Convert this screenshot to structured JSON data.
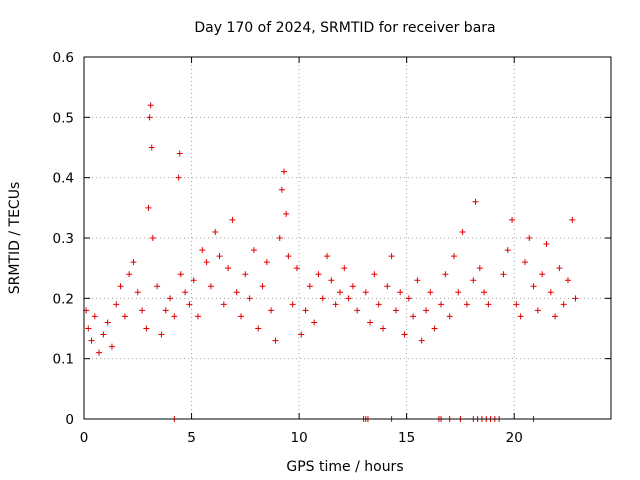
{
  "chart_data": {
    "type": "scatter",
    "title": "Day 170 of 2024, SRMTID for receiver bara",
    "xlabel": "GPS time / hours",
    "ylabel": "SRMTID / TECUs",
    "xlim": [
      0,
      24.5
    ],
    "ylim": [
      0,
      0.6
    ],
    "xticks": [
      0,
      5,
      10,
      15,
      20
    ],
    "xtick_labels": [
      "0",
      "5",
      "10",
      "15",
      "20"
    ],
    "yticks": [
      0,
      0.1,
      0.2,
      0.3,
      0.4,
      0.5,
      0.6
    ],
    "ytick_labels": [
      "0",
      "0.1",
      "0.2",
      "0.3",
      "0.4",
      "0.5",
      "0.6"
    ],
    "grid": true,
    "marker": "plus",
    "marker_color": "#e00000",
    "series": [
      {
        "name": "SRMTID",
        "x": [
          0.1,
          0.2,
          0.35,
          0.5,
          0.7,
          0.9,
          1.1,
          1.3,
          1.5,
          1.7,
          1.9,
          2.1,
          2.3,
          2.5,
          2.7,
          2.9,
          3.0,
          3.05,
          3.1,
          3.15,
          3.2,
          3.4,
          3.6,
          3.8,
          4.0,
          4.2,
          4.4,
          4.45,
          4.5,
          4.7,
          4.9,
          5.1,
          5.3,
          5.5,
          5.7,
          5.9,
          6.1,
          6.3,
          6.5,
          6.7,
          6.9,
          7.1,
          7.3,
          7.5,
          7.7,
          7.9,
          8.1,
          8.3,
          8.5,
          8.7,
          8.9,
          9.1,
          9.2,
          9.3,
          9.4,
          9.5,
          9.7,
          9.9,
          10.1,
          10.3,
          10.5,
          10.7,
          10.9,
          11.1,
          11.3,
          11.5,
          11.7,
          11.9,
          12.1,
          12.3,
          12.5,
          12.7,
          13.1,
          13.3,
          13.5,
          13.7,
          13.9,
          14.1,
          14.3,
          14.5,
          14.7,
          14.9,
          15.1,
          15.3,
          15.5,
          15.7,
          15.9,
          16.1,
          16.3,
          16.6,
          16.8,
          17.0,
          17.2,
          17.4,
          17.6,
          17.8,
          18.1,
          18.2,
          18.4,
          18.6,
          18.8,
          19.5,
          19.7,
          19.9,
          20.1,
          20.3,
          20.5,
          20.7,
          20.9,
          21.1,
          21.3,
          21.5,
          21.7,
          21.9,
          22.1,
          22.3,
          22.5,
          22.7,
          22.85
        ],
        "y": [
          0.18,
          0.15,
          0.13,
          0.17,
          0.11,
          0.14,
          0.16,
          0.12,
          0.19,
          0.22,
          0.17,
          0.24,
          0.26,
          0.21,
          0.18,
          0.15,
          0.35,
          0.5,
          0.52,
          0.45,
          0.3,
          0.22,
          0.14,
          0.18,
          0.2,
          0.17,
          0.4,
          0.44,
          0.24,
          0.21,
          0.19,
          0.23,
          0.17,
          0.28,
          0.26,
          0.22,
          0.31,
          0.27,
          0.19,
          0.25,
          0.33,
          0.21,
          0.17,
          0.24,
          0.2,
          0.28,
          0.15,
          0.22,
          0.26,
          0.18,
          0.13,
          0.3,
          0.38,
          0.41,
          0.34,
          0.27,
          0.19,
          0.25,
          0.14,
          0.18,
          0.22,
          0.16,
          0.24,
          0.2,
          0.27,
          0.23,
          0.19,
          0.21,
          0.25,
          0.2,
          0.22,
          0.18,
          0.21,
          0.16,
          0.24,
          0.19,
          0.15,
          0.22,
          0.27,
          0.18,
          0.21,
          0.14,
          0.2,
          0.17,
          0.23,
          0.13,
          0.18,
          0.21,
          0.15,
          0.19,
          0.24,
          0.17,
          0.27,
          0.21,
          0.31,
          0.19,
          0.23,
          0.36,
          0.25,
          0.21,
          0.19,
          0.24,
          0.28,
          0.33,
          0.19,
          0.17,
          0.26,
          0.3,
          0.22,
          0.18,
          0.24,
          0.29,
          0.21,
          0.17,
          0.25,
          0.19,
          0.23,
          0.33,
          0.2
        ]
      }
    ],
    "zero_points_x": [
      4.2,
      13.0,
      13.1,
      13.2,
      14.3,
      16.5,
      16.6,
      17.0,
      17.5,
      18.1,
      18.3,
      18.5,
      18.7,
      18.9,
      19.1,
      19.3,
      20.9
    ]
  }
}
